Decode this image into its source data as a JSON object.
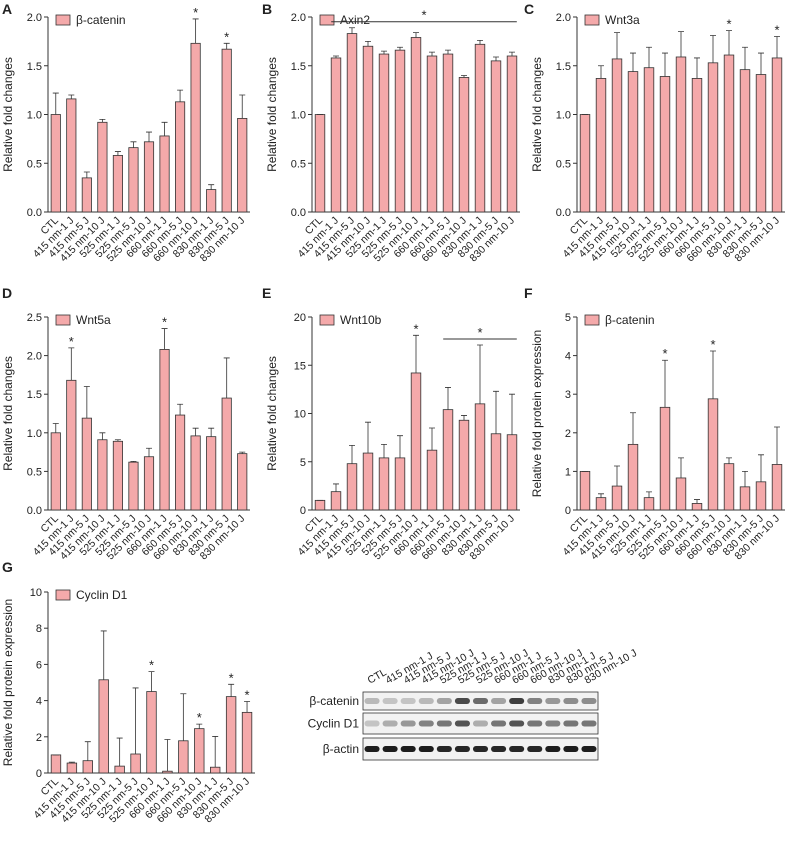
{
  "chart_data": [
    {
      "type": "bar",
      "panel": "A",
      "ylabel": "Relative fold changes",
      "categories": [
        "CTL",
        "415 nm-1 J",
        "415 nm-5 J",
        "415 nm-10 J",
        "525 nm-1 J",
        "525 nm-5 J",
        "525 nm-10 J",
        "660 nm-1 J",
        "660 nm-5 J",
        "660 nm-10 J",
        "830 nm-1 J",
        "830 nm-5 J",
        "830 nm-10 J"
      ],
      "series": [
        {
          "name": "β-catenin",
          "color": "#f4a9aa",
          "values": [
            1.0,
            1.16,
            0.35,
            0.92,
            0.58,
            0.66,
            0.72,
            0.78,
            1.13,
            1.73,
            0.23,
            1.67,
            0.96
          ],
          "errors": [
            0.22,
            0.04,
            0.06,
            0.03,
            0.04,
            0.06,
            0.1,
            0.14,
            0.12,
            0.25,
            0.05,
            0.06,
            0.24
          ]
        }
      ],
      "ylim": [
        0,
        2
      ],
      "yticks": [
        {
          "value": 0,
          "label": "0.0"
        },
        0.5,
        {
          "value": 1,
          "label": "1.0"
        },
        1.5,
        {
          "value": 2,
          "label": "2.0"
        }
      ],
      "annotations": [
        {
          "category": "660 nm-10 J",
          "text": "*"
        },
        {
          "category": "830 nm-5 J",
          "text": "*"
        }
      ]
    },
    {
      "type": "bar",
      "panel": "B",
      "ylabel": "Relative fold changes",
      "categories": [
        "CTL",
        "415 nm-1 J",
        "415 nm-5 J",
        "415 nm-10 J",
        "525 nm-1 J",
        "525 nm-5 J",
        "525 nm-10 J",
        "660 nm-1 J",
        "660 nm-5 J",
        "660 nm-10 J",
        "830 nm-1 J",
        "830 nm-5 J",
        "830 nm-10 J"
      ],
      "series": [
        {
          "name": "Axin2",
          "color": "#f4a9aa",
          "values": [
            1.0,
            1.58,
            1.83,
            1.7,
            1.62,
            1.66,
            1.79,
            1.6,
            1.62,
            1.38,
            1.72,
            1.55,
            1.6
          ],
          "errors": [
            0,
            0.02,
            0.06,
            0.05,
            0.03,
            0.03,
            0.05,
            0.04,
            0.04,
            0.02,
            0.04,
            0.04,
            0.04
          ]
        }
      ],
      "ylim": [
        0,
        2
      ],
      "yticks": [
        {
          "value": 0,
          "label": "0.0"
        },
        0.5,
        {
          "value": 1,
          "label": "1.0"
        },
        1.5,
        {
          "value": 2,
          "label": "2.0"
        }
      ],
      "annotations": [
        {
          "from": "415 nm-1 J",
          "to": "830 nm-10 J",
          "text": "*"
        }
      ]
    },
    {
      "type": "bar",
      "panel": "C",
      "ylabel": "Relative fold changes",
      "categories": [
        "CTL",
        "415 nm-1 J",
        "415 nm-5 J",
        "415 nm-10 J",
        "525 nm-1 J",
        "525 nm-5 J",
        "525 nm-10 J",
        "660 nm-1 J",
        "660 nm-5 J",
        "660 nm-10 J",
        "830 nm-1 J",
        "830 nm-5 J",
        "830 nm-10 J"
      ],
      "series": [
        {
          "name": "Wnt3a",
          "color": "#f4a9aa",
          "values": [
            1.0,
            1.37,
            1.57,
            1.44,
            1.48,
            1.39,
            1.59,
            1.37,
            1.53,
            1.61,
            1.46,
            1.41,
            1.58
          ],
          "errors": [
            0,
            0.13,
            0.27,
            0.19,
            0.21,
            0.24,
            0.26,
            0.21,
            0.28,
            0.25,
            0.23,
            0.22,
            0.22
          ]
        }
      ],
      "ylim": [
        0,
        2
      ],
      "yticks": [
        {
          "value": 0,
          "label": "0.0"
        },
        0.5,
        {
          "value": 1,
          "label": "1.0"
        },
        1.5,
        {
          "value": 2,
          "label": "2.0"
        }
      ],
      "annotations": [
        {
          "category": "660 nm-10 J",
          "text": "*"
        },
        {
          "category": "830 nm-10 J",
          "text": "*"
        }
      ]
    },
    {
      "type": "bar",
      "panel": "D",
      "ylabel": "Relative fold changes",
      "categories": [
        "CTL",
        "415 nm-1 J",
        "415 nm-5 J",
        "415 nm-10 J",
        "525 nm-1 J",
        "525 nm-5 J",
        "525 nm-10 J",
        "660 nm-1 J",
        "660 nm-5 J",
        "660 nm-10 J",
        "830 nm-1 J",
        "830 nm-5 J",
        "830 nm-10 J"
      ],
      "series": [
        {
          "name": "Wnt5a",
          "color": "#f4a9aa",
          "values": [
            1.0,
            1.68,
            1.19,
            0.91,
            0.89,
            0.62,
            0.69,
            2.08,
            1.23,
            0.96,
            0.95,
            1.45,
            0.73
          ],
          "errors": [
            0.12,
            0.42,
            0.41,
            0.09,
            0.02,
            0.01,
            0.11,
            0.27,
            0.14,
            0.1,
            0.11,
            0.52,
            0.02
          ]
        }
      ],
      "ylim": [
        0,
        2.5
      ],
      "yticks": [
        {
          "value": 0,
          "label": "0.0"
        },
        0.5,
        {
          "value": 1,
          "label": "1.0"
        },
        1.5,
        {
          "value": 2,
          "label": "2.0"
        },
        2.5
      ],
      "annotations": [
        {
          "category": "415 nm-1 J",
          "text": "*"
        },
        {
          "category": "660 nm-1 J",
          "text": "*"
        }
      ]
    },
    {
      "type": "bar",
      "panel": "E",
      "ylabel": "Relative fold changes",
      "categories": [
        "CTL",
        "415 nm-1 J",
        "415 nm-5 J",
        "415 nm-10 J",
        "525 nm-1 J",
        "525 nm-5 J",
        "525 nm-10 J",
        "660 nm-1 J",
        "660 nm-5 J",
        "660 nm-10 J",
        "830 nm-1 J",
        "830 nm-5 J",
        "830 nm-10 J"
      ],
      "series": [
        {
          "name": "Wnt10b",
          "color": "#f4a9aa",
          "values": [
            1.0,
            1.9,
            4.8,
            5.9,
            5.4,
            5.4,
            14.2,
            6.2,
            10.4,
            9.3,
            11.0,
            7.9,
            7.8
          ],
          "errors": [
            0,
            0.8,
            1.9,
            3.2,
            1.4,
            2.3,
            3.9,
            2.3,
            2.3,
            0.5,
            6.1,
            4.4,
            4.2
          ]
        }
      ],
      "ylim": [
        0,
        20
      ],
      "yticks": [
        0,
        5,
        10,
        15,
        20
      ],
      "annotations": [
        {
          "category": "525 nm-10 J",
          "text": "*"
        },
        {
          "from": "660 nm-5 J",
          "to": "830 nm-10 J",
          "text": "*"
        }
      ]
    },
    {
      "type": "bar",
      "panel": "F",
      "ylabel": "Relative fold protein expression",
      "categories": [
        "CTL",
        "415 nm-1 J",
        "415 nm-5 J",
        "415 nm-10 J",
        "525 nm-1 J",
        "525 nm-5 J",
        "525 nm-10 J",
        "660 nm-1 J",
        "660 nm-5 J",
        "660 nm-10 J",
        "830 nm-1 J",
        "830 nm-5 J",
        "830 nm-10 J"
      ],
      "series": [
        {
          "name": "β-catenin",
          "color": "#f4a9aa",
          "values": [
            1.0,
            0.32,
            0.62,
            1.7,
            0.32,
            2.66,
            0.83,
            0.17,
            2.88,
            1.2,
            0.6,
            0.73,
            1.18
          ],
          "errors": [
            0,
            0.1,
            0.52,
            0.82,
            0.15,
            1.22,
            0.52,
            0.1,
            1.24,
            0.15,
            0.4,
            0.7,
            0.97
          ]
        }
      ],
      "ylim": [
        0,
        5
      ],
      "yticks": [
        0,
        1,
        2,
        3,
        4,
        5
      ],
      "annotations": [
        {
          "category": "525 nm-5 J",
          "text": "*"
        },
        {
          "category": "660 nm-5 J",
          "text": "*"
        }
      ]
    },
    {
      "type": "bar",
      "panel": "G",
      "ylabel": "Relative fold protein expression",
      "categories": [
        "CTL",
        "415 nm-1 J",
        "415 nm-5 J",
        "415 nm-10 J",
        "525 nm-1 J",
        "525 nm-5 J",
        "525 nm-10 J",
        "660 nm-1 J",
        "660 nm-5 J",
        "660 nm-10 J",
        "830 nm-1 J",
        "830 nm-5 J",
        "830 nm-10 J"
      ],
      "series": [
        {
          "name": "Cyclin D1",
          "color": "#f4a9aa",
          "values": [
            1.0,
            0.55,
            0.68,
            5.15,
            0.38,
            1.05,
            4.5,
            0.1,
            1.78,
            2.45,
            0.32,
            4.22,
            3.35
          ],
          "errors": [
            0,
            0.05,
            1.05,
            2.7,
            1.55,
            3.65,
            1.1,
            1.75,
            2.6,
            0.25,
            1.7,
            0.68,
            0.6
          ]
        }
      ],
      "ylim": [
        0,
        10
      ],
      "yticks": [
        0,
        2,
        4,
        6,
        8,
        10
      ],
      "annotations": [
        {
          "category": "525 nm-10 J",
          "text": "*"
        },
        {
          "category": "660 nm-10 J",
          "text": "*"
        },
        {
          "category": "830 nm-5 J",
          "text": "*"
        },
        {
          "category": "830 nm-10 J",
          "text": "*"
        }
      ]
    }
  ],
  "blot": {
    "lanes": [
      "CTL",
      "415 nm-1 J",
      "415 nm-5 J",
      "415 nm-10 J",
      "525 nm-1 J",
      "525 nm-5 J",
      "525 nm-10 J",
      "660 nm-1 J",
      "660 nm-5 J",
      "660 nm-10 J",
      "830 nm-1 J",
      "830 nm-5 J",
      "830 nm-10 J"
    ],
    "rows": [
      "β-catenin",
      "Cyclin D1",
      "β-actin"
    ]
  }
}
